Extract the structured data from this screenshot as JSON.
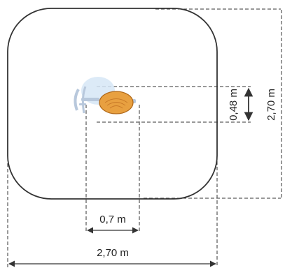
{
  "diagram": {
    "equipment": {
      "icon": "spring-rider-icon",
      "seat_color": "#e8a040",
      "seat_outline": "#b06818",
      "frame_color": "#b8c8dc",
      "frame_highlight": "#d6e6f6"
    },
    "dimensions": {
      "zone_width": "2,70 m",
      "zone_height": "2,70 m",
      "equipment_width": "0,7 m",
      "equipment_depth": "0,48 m"
    },
    "colors": {
      "zone_outline": "#333333",
      "dimension_lines": "#333333",
      "text": "#222222"
    }
  }
}
